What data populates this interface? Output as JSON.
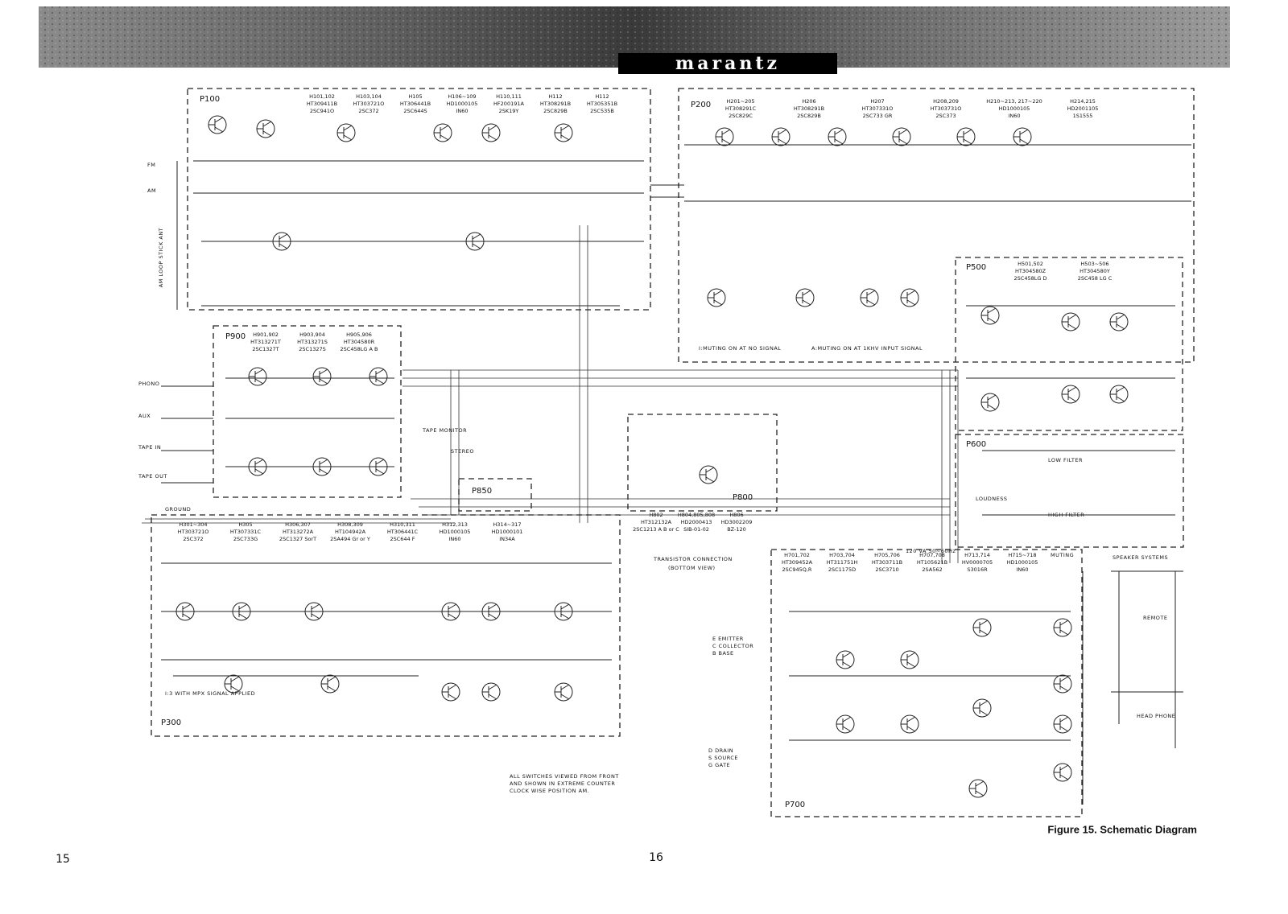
{
  "header": {
    "brand": "marantz"
  },
  "boards": [
    {
      "label": "P100",
      "transistors": [
        [
          "H101,102",
          "HT309411B",
          "2SC941O"
        ],
        [
          "H103,104",
          "HT303721O",
          "2SC372"
        ],
        [
          "H105",
          "HT306441B",
          "2SC644S"
        ],
        [
          "H106~109",
          "HD1000105",
          "IN60"
        ],
        [
          "H110,111",
          "HF200191A",
          "2SK19Y"
        ],
        [
          "H112",
          "HT308291B",
          "2SC829B"
        ],
        [
          "H112",
          "HT305351B",
          "2SC535B"
        ]
      ]
    },
    {
      "label": "P200",
      "transistors": [
        [
          "H201~205",
          "HT308291C",
          "2SC829C"
        ],
        [
          "H206",
          "HT308291B",
          "2SC829B"
        ],
        [
          "H207",
          "HT307331O",
          "2SC733 GR"
        ],
        [
          "H208,209",
          "HT303731O",
          "2SC373"
        ],
        [
          "H210~213, 217~220",
          "HD1000105",
          "IN60"
        ],
        [
          "H214,215",
          "HD2001105",
          "1S1555"
        ]
      ]
    },
    {
      "label": "P900",
      "transistors": [
        [
          "H901,902",
          "HT313271T",
          "2SC1327T"
        ],
        [
          "H903,904",
          "HT313271S",
          "2SC1327S"
        ],
        [
          "H905,906",
          "HT304580R",
          "2SC458LG A B"
        ]
      ]
    },
    {
      "label": "P500",
      "transistors": [
        [
          "H501,502",
          "HT304580Z",
          "2SC458LG D"
        ],
        [
          "H503~506",
          "HT304580Y",
          "2SC458 LG C"
        ]
      ]
    },
    {
      "label": "P600",
      "transistors": []
    },
    {
      "label": "P800",
      "transistors": [
        [
          "H802",
          "HT312132A",
          "2SC1213 A B or C"
        ],
        [
          "H804,805,808",
          "HD2000413",
          "SIB-01-02"
        ],
        [
          "H806",
          "HD3002209",
          "BZ-120"
        ]
      ]
    },
    {
      "label": "P850",
      "transistors": []
    },
    {
      "label": "P300",
      "transistors": [
        [
          "H301~304",
          "HT303721O",
          "2SC372"
        ],
        [
          "H305",
          "HT307331C",
          "2SC733G"
        ],
        [
          "H306,307",
          "HT313272A",
          "2SC1327 SorT"
        ],
        [
          "H308,309",
          "HT104942A",
          "2SA494 Gr or Y"
        ],
        [
          "H310,311",
          "HT306441C",
          "2SC644 F"
        ],
        [
          "H312,313",
          "HD1000105",
          "IN60"
        ],
        [
          "H314~317",
          "HD1000101",
          "IN34A"
        ]
      ]
    },
    {
      "label": "P700",
      "transistors": [
        [
          "H701,702",
          "HT309452A",
          "2SC945Q,R"
        ],
        [
          "H703,704",
          "HT311751H",
          "2SC1175D"
        ],
        [
          "H705,706",
          "HT303711B",
          "2SC3710"
        ],
        [
          "H707,708",
          "HT105621B",
          "2SA562"
        ],
        [
          "H713,714",
          "HV0000705",
          "S3016R"
        ],
        [
          "H715~718",
          "HD1000105",
          "IN60"
        ]
      ]
    }
  ],
  "notes": [
    "TRANSISTOR CONNECTION",
    "(BOTTOM VIEW)",
    "E EMITTER",
    "C COLLECTOR",
    "B BASE",
    "D DRAIN",
    "S SOURCE",
    "G GATE",
    "ALL SWITCHES VIEWED FROM FRONT",
    "AND SHOWN IN EXTREME COUNTER",
    "CLOCK WISE POSITION AM.",
    "I:MUTING ON AT NO SIGNAL",
    "A:MUTING ON AT 1KHV INPUT SIGNAL",
    "I:3 WITH MPX SIGNAL APPLIED",
    "SPEAKER SYSTEMS",
    "HEAD PHONE",
    "GROUND",
    "TAPE MONITOR",
    "PHONO",
    "AUX",
    "TAPE IN",
    "TAPE OUT",
    "FM",
    "AM",
    "LOW FILTER",
    "HIGH FILTER",
    "LOUDNESS",
    "MUTING",
    "STEREO",
    "REMOTE",
    "120 VA 50~60Hz",
    "AM LOOP STICK ANT"
  ],
  "caption": "Figure 15.  Schematic Diagram",
  "page_numbers": [
    "15",
    "16"
  ]
}
